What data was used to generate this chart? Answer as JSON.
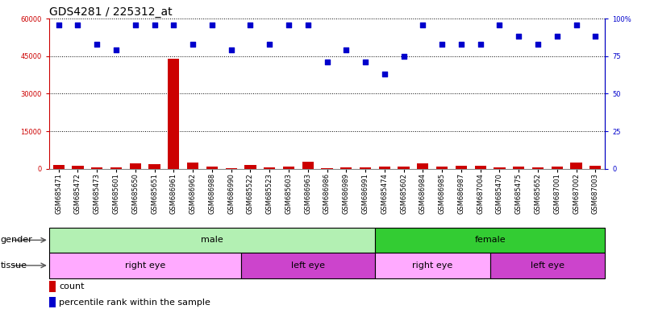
{
  "title": "GDS4281 / 225312_at",
  "samples": [
    "GSM685471",
    "GSM685472",
    "GSM685473",
    "GSM685601",
    "GSM685650",
    "GSM685651",
    "GSM686961",
    "GSM686962",
    "GSM686988",
    "GSM686990",
    "GSM685522",
    "GSM685523",
    "GSM685603",
    "GSM686963",
    "GSM686986",
    "GSM686989",
    "GSM686991",
    "GSM685474",
    "GSM685602",
    "GSM686984",
    "GSM686985",
    "GSM686987",
    "GSM687004",
    "GSM685470",
    "GSM685475",
    "GSM685652",
    "GSM687001",
    "GSM687002",
    "GSM687003"
  ],
  "counts": [
    1400,
    1100,
    600,
    400,
    2200,
    1800,
    44000,
    2500,
    700,
    300,
    1600,
    500,
    800,
    2800,
    200,
    400,
    600,
    700,
    1000,
    2200,
    800,
    1100,
    1300,
    500,
    700,
    400,
    700,
    2500,
    1100
  ],
  "percentiles": [
    96,
    96,
    83,
    79,
    96,
    96,
    96,
    83,
    96,
    79,
    96,
    83,
    96,
    96,
    71,
    79,
    71,
    63,
    75,
    96,
    83,
    83,
    83,
    96,
    88,
    83,
    88,
    96,
    88
  ],
  "ylim_left": [
    0,
    60000
  ],
  "ylim_right": [
    0,
    100
  ],
  "yticks_left": [
    0,
    15000,
    30000,
    45000,
    60000
  ],
  "yticks_right": [
    0,
    25,
    50,
    75,
    100
  ],
  "ytick_labels_left": [
    "0",
    "15000",
    "30000",
    "45000",
    "60000"
  ],
  "ytick_labels_right": [
    "0",
    "25",
    "50",
    "75",
    "100%"
  ],
  "bar_color": "#cc0000",
  "dot_color": "#0000cc",
  "gender_male_color": "#b3f0b3",
  "gender_female_color": "#33cc33",
  "tissue_righteye_color": "#ffaaff",
  "tissue_lefteye_color": "#cc44cc",
  "gender_groups": [
    {
      "label": "male",
      "start": 0,
      "end": 16
    },
    {
      "label": "female",
      "start": 17,
      "end": 28
    }
  ],
  "tissue_groups": [
    {
      "label": "right eye",
      "start": 0,
      "end": 9,
      "color": "#ffaaff"
    },
    {
      "label": "left eye",
      "start": 10,
      "end": 16,
      "color": "#cc44cc"
    },
    {
      "label": "right eye",
      "start": 17,
      "end": 22,
      "color": "#ffaaff"
    },
    {
      "label": "left eye",
      "start": 23,
      "end": 28,
      "color": "#cc44cc"
    }
  ],
  "bg_color": "#ffffff",
  "title_fontsize": 10,
  "tick_fontsize": 6,
  "annotation_fontsize": 8,
  "label_fontsize": 8
}
